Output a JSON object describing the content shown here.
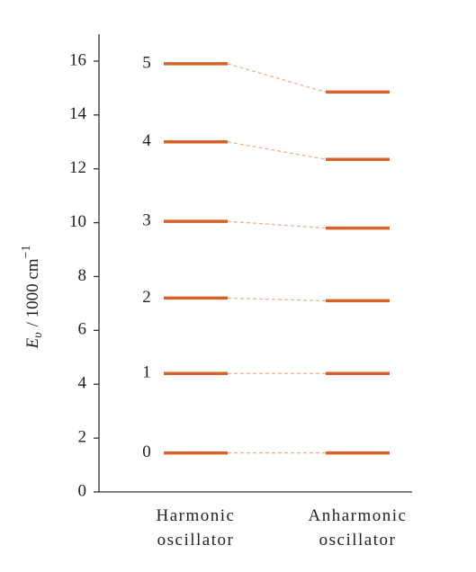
{
  "chart_data": {
    "type": "energy_levels",
    "ylabel": {
      "symbol": "E",
      "subscript": "υ",
      "unit": "/ 1000 cm",
      "exponent": "−1"
    },
    "level_labels": [
      0,
      1,
      2,
      3,
      4,
      5
    ],
    "series": [
      {
        "name": "Harmonic oscillator",
        "color": "#d4622a",
        "values": [
          1.45,
          4.4,
          7.2,
          10.05,
          13.0,
          15.9
        ]
      },
      {
        "name": "Anharmonic oscillator",
        "color": "#d4622a",
        "values": [
          1.45,
          4.4,
          7.1,
          9.8,
          12.35,
          14.85
        ]
      }
    ],
    "connector_color": "#f0b08a",
    "ylim": [
      0,
      17
    ],
    "yticks": [
      0,
      2,
      4,
      6,
      8,
      10,
      12,
      14,
      16
    ]
  }
}
